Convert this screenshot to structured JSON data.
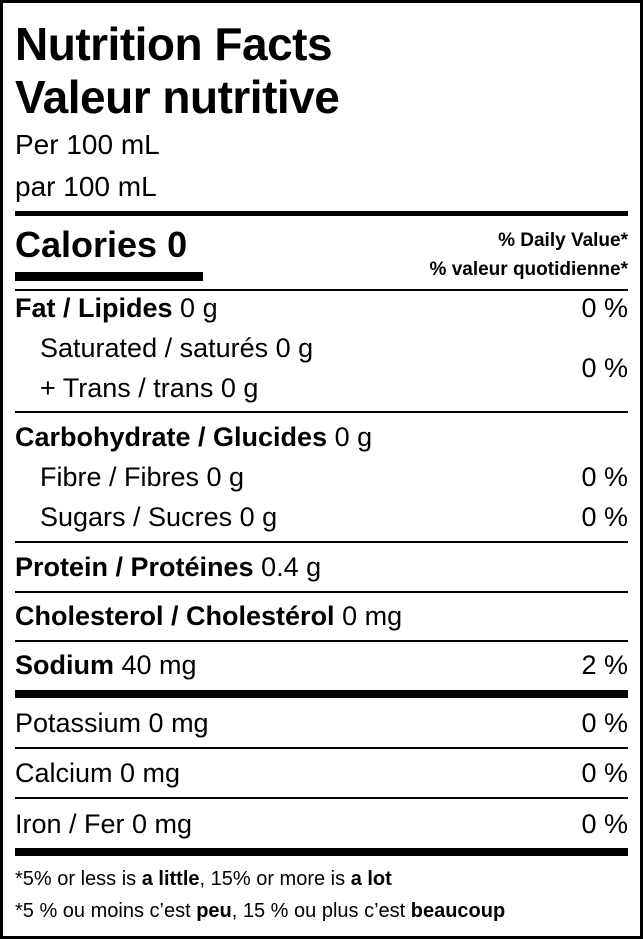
{
  "title_en": "Nutrition Facts",
  "title_fr": "Valeur nutritive",
  "serving_en": "Per 100 mL",
  "serving_fr": "par 100 mL",
  "calories": {
    "label": "Calories",
    "value": "0"
  },
  "dv_header_en": "% Daily Value*",
  "dv_header_fr": "% valeur quotidienne*",
  "rows": {
    "fat": {
      "label": "Fat / Lipides",
      "amount": "0 g",
      "dv": "0 %"
    },
    "saturated": {
      "label": "Saturated / saturés 0 g"
    },
    "trans": {
      "label": "+ Trans / trans 0 g",
      "dv": "0 %"
    },
    "carb": {
      "label": "Carbohydrate / Glucides",
      "amount": "0 g"
    },
    "fibre": {
      "label": "Fibre / Fibres 0 g",
      "dv": "0 %"
    },
    "sugars": {
      "label": "Sugars / Sucres 0 g",
      "dv": "0 %"
    },
    "protein": {
      "label": "Protein / Protéines",
      "amount": "0.4 g"
    },
    "cholesterol": {
      "label": "Cholesterol / Cholestérol",
      "amount": "0 mg"
    },
    "sodium": {
      "label": "Sodium",
      "amount": "40 mg",
      "dv": "2 %"
    },
    "potassium": {
      "label": "Potassium 0 mg",
      "dv": "0 %"
    },
    "calcium": {
      "label": "Calcium 0 mg",
      "dv": "0 %"
    },
    "iron": {
      "label": "Iron / Fer 0 mg",
      "dv": "0 %"
    }
  },
  "footnote_en": {
    "a": "*5% or less is ",
    "b": "a little",
    "c": ", 15% or more is ",
    "d": "a lot"
  },
  "footnote_fr": {
    "a": "*5 % ou moins c’est ",
    "b": "peu",
    "c": ", 15 % ou plus c’est ",
    "d": "beaucoup"
  }
}
